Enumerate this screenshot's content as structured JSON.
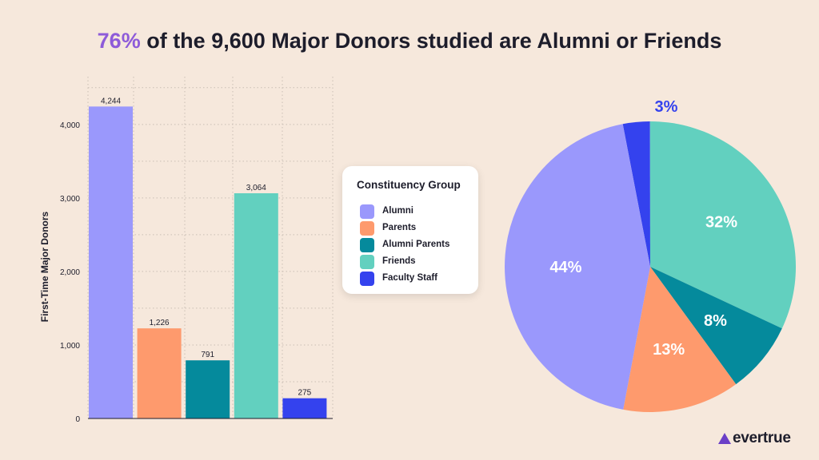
{
  "header": {
    "title_highlight": "76%",
    "title_rest": " of the 9,600 Major Donors studied are Alumni or Friends"
  },
  "legend": {
    "title": "Constituency Group",
    "items": [
      {
        "label": "Alumni",
        "color": "#9a98fc"
      },
      {
        "label": "Parents",
        "color": "#fe9a6d"
      },
      {
        "label": "Alumni Parents",
        "color": "#058a9c"
      },
      {
        "label": "Friends",
        "color": "#62d0bf"
      },
      {
        "label": "Faculty Staff",
        "color": "#3442ee"
      }
    ]
  },
  "brand": {
    "name": "evertrue"
  },
  "chart_data": [
    {
      "type": "bar",
      "categories": [
        "Alumni",
        "Parents",
        "Alumni Parents",
        "Friends",
        "Faculty Staff"
      ],
      "values": [
        4244,
        1226,
        791,
        3064,
        275
      ],
      "value_labels": [
        "4,244",
        "1,226",
        "791",
        "3,064",
        "275"
      ],
      "colors": [
        "#9a98fc",
        "#fe9a6d",
        "#058a9c",
        "#62d0bf",
        "#3442ee"
      ],
      "ylabel": "First-Time Major Donors",
      "yticks": [
        0,
        1000,
        2000,
        3000,
        4000
      ],
      "ytick_labels": [
        "0",
        "1,000",
        "2,000",
        "3,000",
        "4,000"
      ],
      "ylim": [
        0,
        4650
      ],
      "grid": true
    },
    {
      "type": "pie",
      "categories": [
        "Faculty Staff",
        "Friends",
        "Alumni Parents",
        "Parents",
        "Alumni"
      ],
      "values": [
        3,
        32,
        8,
        13,
        44
      ],
      "value_labels": [
        "3%",
        "32%",
        "8%",
        "13%",
        "44%"
      ],
      "colors": [
        "#3442ee",
        "#62d0bf",
        "#058a9c",
        "#fe9a6d",
        "#9a98fc"
      ]
    }
  ]
}
